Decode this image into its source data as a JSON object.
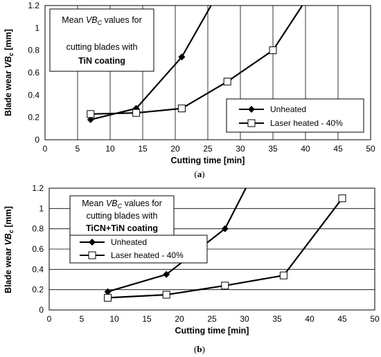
{
  "chart_data": [
    {
      "id": "a",
      "type": "line",
      "caption_open": "(",
      "caption_letter": "a",
      "caption_close": ")",
      "xlabel": "Cutting  time [min]",
      "ylabel_prefix": "Blade  wear  ",
      "ylabel_var": "VB",
      "ylabel_sub": "c",
      "ylabel_suffix": " [mm]",
      "xlim": [
        0,
        50
      ],
      "ylim": [
        0,
        1.2
      ],
      "xticks": [
        "0",
        "5",
        "10",
        "15",
        "20",
        "25",
        "30",
        "35",
        "40",
        "45",
        "50"
      ],
      "yticks": [
        "0",
        "0.2",
        "0.4",
        "0.6",
        "0.8",
        "1",
        "1.2"
      ],
      "grid": "vertical",
      "annotation": {
        "line1_pre": "Mean ",
        "line1_var": "VB",
        "line1_sub": "C",
        "line1_post": " values for",
        "line2": "cutting blades with",
        "line3": "TiN coating"
      },
      "legend_position": "bottom-right",
      "series": [
        {
          "name": "Unheated",
          "marker": "diamond",
          "x": [
            7,
            14,
            21,
            25.5
          ],
          "y": [
            0.18,
            0.28,
            0.74,
            1.2
          ]
        },
        {
          "name": "Laser heated - 40%",
          "marker": "square",
          "x": [
            7,
            14,
            21,
            28,
            35,
            39.5
          ],
          "y": [
            0.23,
            0.24,
            0.28,
            0.52,
            0.8,
            1.2
          ]
        }
      ]
    },
    {
      "id": "b",
      "type": "line",
      "caption_open": "(",
      "caption_letter": "b",
      "caption_close": ")",
      "xlabel": "Cutting  time [min]",
      "ylabel_prefix": "Blade  wear  ",
      "ylabel_var": "VB",
      "ylabel_sub": "c",
      "ylabel_suffix": " [mm]",
      "xlim": [
        0,
        50
      ],
      "ylim": [
        0,
        1.2
      ],
      "xticks": [
        "0",
        "5",
        "10",
        "15",
        "20",
        "25",
        "30",
        "35",
        "40",
        "45",
        "50"
      ],
      "yticks": [
        "0",
        "0.2",
        "0.4",
        "0.6",
        "0.8",
        "1",
        "1.2"
      ],
      "grid": "horizontal",
      "annotation": {
        "line1_pre": "Mean ",
        "line1_var": "VB",
        "line1_sub": "C",
        "line1_post": " values for",
        "line2": "cutting blades with",
        "line3": "TiCN+TiN coating"
      },
      "legend_position": "top-left",
      "series": [
        {
          "name": "Unheated",
          "marker": "diamond",
          "x": [
            9,
            18,
            27,
            30.2
          ],
          "y": [
            0.18,
            0.35,
            0.8,
            1.2
          ]
        },
        {
          "name": "Laser heated - 40%",
          "marker": "square",
          "x": [
            9,
            18,
            27,
            36,
            45
          ],
          "y": [
            0.12,
            0.15,
            0.24,
            0.34,
            1.1
          ]
        }
      ]
    }
  ]
}
